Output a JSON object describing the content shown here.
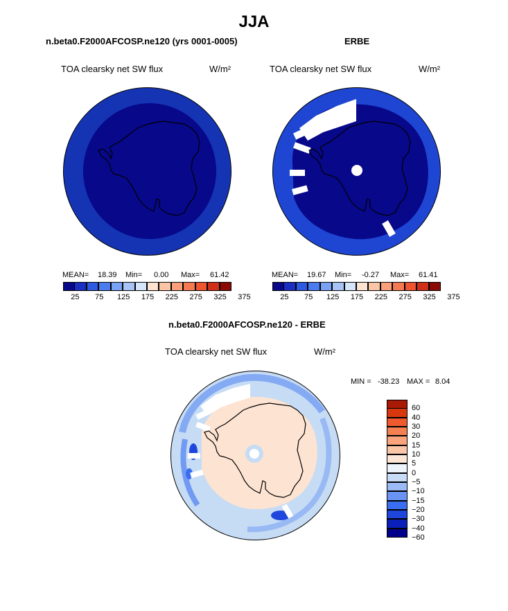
{
  "header": {
    "title": "JJA",
    "left_subtitle": "n.beta0.F2000AFCOSP.ne120 (yrs 0001-0005)",
    "right_subtitle": "ERBE",
    "bottom_subtitle": "n.beta0.F2000AFCOSP.ne120 - ERBE"
  },
  "colors": {
    "main_palette": [
      "#08088a",
      "#1a2ec2",
      "#2c5ae0",
      "#4a7cf0",
      "#7aa2f4",
      "#a8c4f6",
      "#d6e6fa",
      "#fde3d2",
      "#fbc6a6",
      "#f9a07a",
      "#f57a52",
      "#ef5530",
      "#d0301a",
      "#8a0a04"
    ],
    "diff_palette": [
      "#00008a",
      "#0a20b8",
      "#1e46dc",
      "#3a6ef0",
      "#6a94f4",
      "#9cbaf6",
      "#c8dcf8",
      "#eef4fc",
      "#fde6d6",
      "#fbc6a8",
      "#f9a47c",
      "#f58052",
      "#ef5a2e",
      "#d8380e",
      "#a81a04"
    ],
    "ocean_model": "#1434b4",
    "ocean_erbe": "#1e46d2",
    "interior": "#08088a",
    "diff_ocean": "#c6dcf5",
    "diff_land": "#fde3d2"
  },
  "chart_data": [
    {
      "type": "heatmap",
      "name": "model",
      "title": "TOA clearsky net SW flux",
      "units": "W/m²",
      "projection": "south-polar-stereographic",
      "mean": "18.39",
      "min": "0.00",
      "max": "61.42",
      "levels": [
        25,
        50,
        75,
        100,
        125,
        150,
        175,
        200,
        225,
        250,
        275,
        300,
        325,
        350,
        375
      ],
      "colorbar_tick_labels": [
        "25",
        "75",
        "125",
        "175",
        "225",
        "275",
        "325",
        "375"
      ],
      "stat_labels": {
        "mean": "MEAN=",
        "min": "Min=",
        "max": "Max="
      }
    },
    {
      "type": "heatmap",
      "name": "erbe",
      "title": "TOA clearsky net SW flux",
      "units": "W/m²",
      "projection": "south-polar-stereographic",
      "mean": "19.67",
      "min": "-0.27",
      "max": "61.41",
      "levels": [
        25,
        50,
        75,
        100,
        125,
        150,
        175,
        200,
        225,
        250,
        275,
        300,
        325,
        350,
        375
      ],
      "colorbar_tick_labels": [
        "25",
        "75",
        "125",
        "175",
        "225",
        "275",
        "325",
        "375"
      ],
      "stat_labels": {
        "mean": "MEAN=",
        "min": "Min=",
        "max": "Max="
      }
    },
    {
      "type": "heatmap",
      "name": "difference",
      "title": "TOA clearsky net SW flux",
      "units": "W/m²",
      "projection": "south-polar-stereographic",
      "min_label": "MIN =",
      "min": "-38.23",
      "max_label": "MAX =",
      "max": "8.04",
      "levels": [
        -60,
        -40,
        -30,
        -20,
        -15,
        -10,
        -5,
        0,
        5,
        10,
        15,
        20,
        30,
        40,
        60
      ],
      "colorbar_tick_labels": [
        "60",
        "40",
        "30",
        "20",
        "15",
        "10",
        "5",
        "0",
        "−5",
        "−10",
        "−15",
        "−20",
        "−30",
        "−40",
        "−60"
      ]
    }
  ]
}
